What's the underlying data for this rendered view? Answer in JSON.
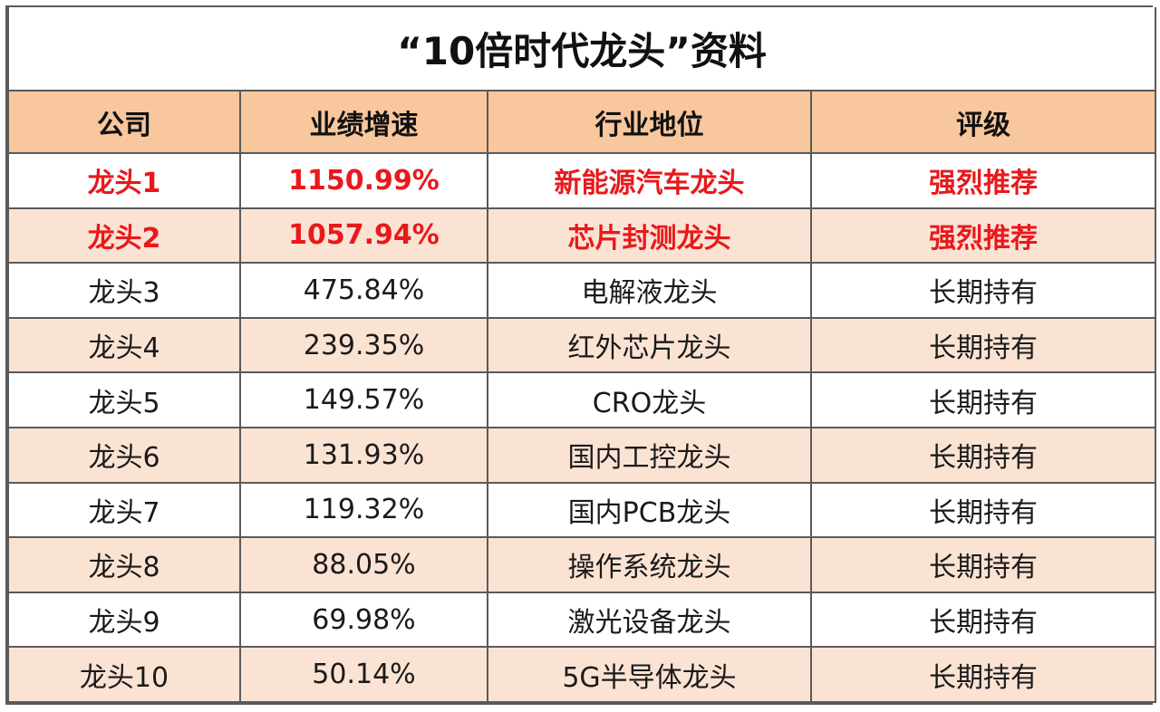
{
  "title": "“10倍时代龙头”资料",
  "columns": [
    "公司",
    "业绩增速",
    "行业地位",
    "评级"
  ],
  "rows": [
    {
      "company": "龙头1",
      "growth": "1150.99%",
      "position": "新能源汽车龙头",
      "rating": "强烈推荐",
      "highlight": true
    },
    {
      "company": "龙头2",
      "growth": "1057.94%",
      "position": "芯片封测龙头",
      "rating": "强烈推荐",
      "highlight": true
    },
    {
      "company": "龙头3",
      "growth": "475.84%",
      "position": "电解液龙头",
      "rating": "长期持有",
      "highlight": false
    },
    {
      "company": "龙头4",
      "growth": "239.35%",
      "position": "红外芯片龙头",
      "rating": "长期持有",
      "highlight": false
    },
    {
      "company": "龙头5",
      "growth": "149.57%",
      "position": "CRO龙头",
      "rating": "长期持有",
      "highlight": false
    },
    {
      "company": "龙头6",
      "growth": "131.93%",
      "position": "国内工控龙头",
      "rating": "长期持有",
      "highlight": false
    },
    {
      "company": "龙头7",
      "growth": "119.32%",
      "position": "国内PCB龙头",
      "rating": "长期持有",
      "highlight": false
    },
    {
      "company": "龙头8",
      "growth": "88.05%",
      "position": "操作系统龙头",
      "rating": "长期持有",
      "highlight": false
    },
    {
      "company": "龙头9",
      "growth": "69.98%",
      "position": "激光设备龙头",
      "rating": "长期持有",
      "highlight": false
    },
    {
      "company": "龙头10",
      "growth": "50.14%",
      "position": "5G半导体龙头",
      "rating": "长期持有",
      "highlight": false
    }
  ],
  "colors": {
    "header_bg": "#f8c79d",
    "highlight_text": "#e8191c",
    "stripe_bg": "#fbe3d4",
    "border": "#5a5a5a"
  }
}
